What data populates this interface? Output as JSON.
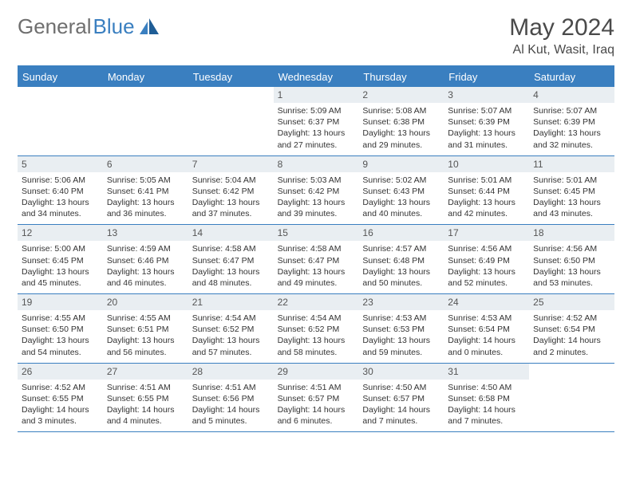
{
  "brand": {
    "name_part1": "General",
    "name_part2": "Blue"
  },
  "title": "May 2024",
  "location": "Al Kut, Wasit, Iraq",
  "colors": {
    "accent": "#3a7fc0",
    "header_text": "#4a4a4a",
    "logo_gray": "#6f6f6f",
    "daynum_bg": "#e9eef2",
    "body_text": "#333333",
    "bg": "#ffffff"
  },
  "dow": [
    "Sunday",
    "Monday",
    "Tuesday",
    "Wednesday",
    "Thursday",
    "Friday",
    "Saturday"
  ],
  "weeks": [
    [
      {
        "n": "",
        "lines": []
      },
      {
        "n": "",
        "lines": []
      },
      {
        "n": "",
        "lines": []
      },
      {
        "n": "1",
        "lines": [
          "Sunrise: 5:09 AM",
          "Sunset: 6:37 PM",
          "Daylight: 13 hours",
          "and 27 minutes."
        ]
      },
      {
        "n": "2",
        "lines": [
          "Sunrise: 5:08 AM",
          "Sunset: 6:38 PM",
          "Daylight: 13 hours",
          "and 29 minutes."
        ]
      },
      {
        "n": "3",
        "lines": [
          "Sunrise: 5:07 AM",
          "Sunset: 6:39 PM",
          "Daylight: 13 hours",
          "and 31 minutes."
        ]
      },
      {
        "n": "4",
        "lines": [
          "Sunrise: 5:07 AM",
          "Sunset: 6:39 PM",
          "Daylight: 13 hours",
          "and 32 minutes."
        ]
      }
    ],
    [
      {
        "n": "5",
        "lines": [
          "Sunrise: 5:06 AM",
          "Sunset: 6:40 PM",
          "Daylight: 13 hours",
          "and 34 minutes."
        ]
      },
      {
        "n": "6",
        "lines": [
          "Sunrise: 5:05 AM",
          "Sunset: 6:41 PM",
          "Daylight: 13 hours",
          "and 36 minutes."
        ]
      },
      {
        "n": "7",
        "lines": [
          "Sunrise: 5:04 AM",
          "Sunset: 6:42 PM",
          "Daylight: 13 hours",
          "and 37 minutes."
        ]
      },
      {
        "n": "8",
        "lines": [
          "Sunrise: 5:03 AM",
          "Sunset: 6:42 PM",
          "Daylight: 13 hours",
          "and 39 minutes."
        ]
      },
      {
        "n": "9",
        "lines": [
          "Sunrise: 5:02 AM",
          "Sunset: 6:43 PM",
          "Daylight: 13 hours",
          "and 40 minutes."
        ]
      },
      {
        "n": "10",
        "lines": [
          "Sunrise: 5:01 AM",
          "Sunset: 6:44 PM",
          "Daylight: 13 hours",
          "and 42 minutes."
        ]
      },
      {
        "n": "11",
        "lines": [
          "Sunrise: 5:01 AM",
          "Sunset: 6:45 PM",
          "Daylight: 13 hours",
          "and 43 minutes."
        ]
      }
    ],
    [
      {
        "n": "12",
        "lines": [
          "Sunrise: 5:00 AM",
          "Sunset: 6:45 PM",
          "Daylight: 13 hours",
          "and 45 minutes."
        ]
      },
      {
        "n": "13",
        "lines": [
          "Sunrise: 4:59 AM",
          "Sunset: 6:46 PM",
          "Daylight: 13 hours",
          "and 46 minutes."
        ]
      },
      {
        "n": "14",
        "lines": [
          "Sunrise: 4:58 AM",
          "Sunset: 6:47 PM",
          "Daylight: 13 hours",
          "and 48 minutes."
        ]
      },
      {
        "n": "15",
        "lines": [
          "Sunrise: 4:58 AM",
          "Sunset: 6:47 PM",
          "Daylight: 13 hours",
          "and 49 minutes."
        ]
      },
      {
        "n": "16",
        "lines": [
          "Sunrise: 4:57 AM",
          "Sunset: 6:48 PM",
          "Daylight: 13 hours",
          "and 50 minutes."
        ]
      },
      {
        "n": "17",
        "lines": [
          "Sunrise: 4:56 AM",
          "Sunset: 6:49 PM",
          "Daylight: 13 hours",
          "and 52 minutes."
        ]
      },
      {
        "n": "18",
        "lines": [
          "Sunrise: 4:56 AM",
          "Sunset: 6:50 PM",
          "Daylight: 13 hours",
          "and 53 minutes."
        ]
      }
    ],
    [
      {
        "n": "19",
        "lines": [
          "Sunrise: 4:55 AM",
          "Sunset: 6:50 PM",
          "Daylight: 13 hours",
          "and 54 minutes."
        ]
      },
      {
        "n": "20",
        "lines": [
          "Sunrise: 4:55 AM",
          "Sunset: 6:51 PM",
          "Daylight: 13 hours",
          "and 56 minutes."
        ]
      },
      {
        "n": "21",
        "lines": [
          "Sunrise: 4:54 AM",
          "Sunset: 6:52 PM",
          "Daylight: 13 hours",
          "and 57 minutes."
        ]
      },
      {
        "n": "22",
        "lines": [
          "Sunrise: 4:54 AM",
          "Sunset: 6:52 PM",
          "Daylight: 13 hours",
          "and 58 minutes."
        ]
      },
      {
        "n": "23",
        "lines": [
          "Sunrise: 4:53 AM",
          "Sunset: 6:53 PM",
          "Daylight: 13 hours",
          "and 59 minutes."
        ]
      },
      {
        "n": "24",
        "lines": [
          "Sunrise: 4:53 AM",
          "Sunset: 6:54 PM",
          "Daylight: 14 hours",
          "and 0 minutes."
        ]
      },
      {
        "n": "25",
        "lines": [
          "Sunrise: 4:52 AM",
          "Sunset: 6:54 PM",
          "Daylight: 14 hours",
          "and 2 minutes."
        ]
      }
    ],
    [
      {
        "n": "26",
        "lines": [
          "Sunrise: 4:52 AM",
          "Sunset: 6:55 PM",
          "Daylight: 14 hours",
          "and 3 minutes."
        ]
      },
      {
        "n": "27",
        "lines": [
          "Sunrise: 4:51 AM",
          "Sunset: 6:55 PM",
          "Daylight: 14 hours",
          "and 4 minutes."
        ]
      },
      {
        "n": "28",
        "lines": [
          "Sunrise: 4:51 AM",
          "Sunset: 6:56 PM",
          "Daylight: 14 hours",
          "and 5 minutes."
        ]
      },
      {
        "n": "29",
        "lines": [
          "Sunrise: 4:51 AM",
          "Sunset: 6:57 PM",
          "Daylight: 14 hours",
          "and 6 minutes."
        ]
      },
      {
        "n": "30",
        "lines": [
          "Sunrise: 4:50 AM",
          "Sunset: 6:57 PM",
          "Daylight: 14 hours",
          "and 7 minutes."
        ]
      },
      {
        "n": "31",
        "lines": [
          "Sunrise: 4:50 AM",
          "Sunset: 6:58 PM",
          "Daylight: 14 hours",
          "and 7 minutes."
        ]
      },
      {
        "n": "",
        "lines": []
      }
    ]
  ]
}
